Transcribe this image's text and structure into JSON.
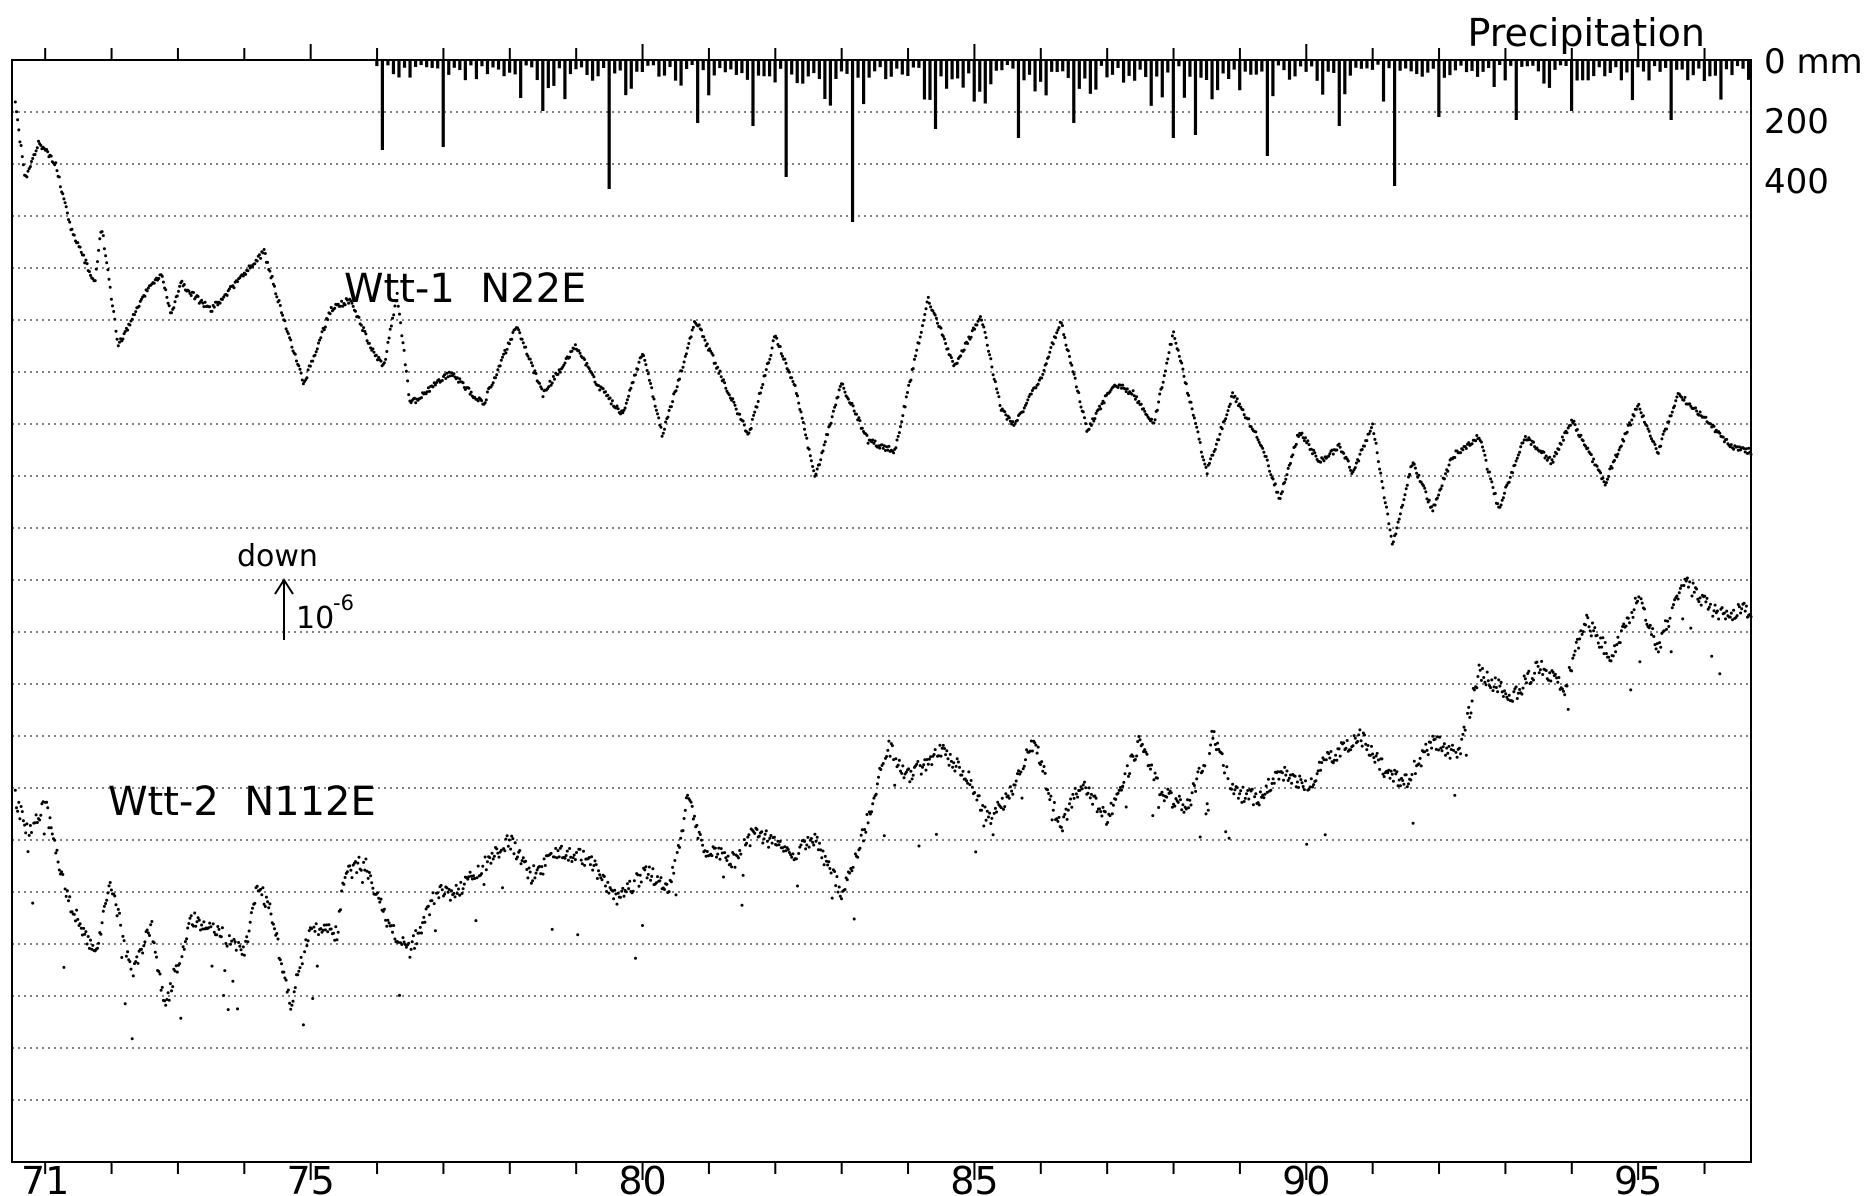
{
  "chart_data": {
    "type": "scatter",
    "title": "",
    "x": {
      "ticks": [
        "71",
        "75",
        "80",
        "85",
        "90",
        "95"
      ],
      "tick_values": [
        71,
        75,
        80,
        85,
        90,
        95
      ],
      "range": [
        70.5,
        96.7
      ]
    },
    "precipitation": {
      "title": "Precipitation",
      "unit": "mm",
      "ticks": [
        "0",
        "200",
        "400"
      ],
      "tick_values": [
        0,
        200,
        400
      ],
      "start": 76.0,
      "end": 96.7,
      "peaks": [
        {
          "x": 76.1,
          "v": 300
        },
        {
          "x": 77.0,
          "v": 290
        },
        {
          "x": 78.5,
          "v": 170
        },
        {
          "x": 79.5,
          "v": 430
        },
        {
          "x": 80.8,
          "v": 210
        },
        {
          "x": 81.7,
          "v": 220
        },
        {
          "x": 82.2,
          "v": 390
        },
        {
          "x": 83.2,
          "v": 540
        },
        {
          "x": 84.4,
          "v": 230
        },
        {
          "x": 85.7,
          "v": 260
        },
        {
          "x": 86.5,
          "v": 210
        },
        {
          "x": 88.0,
          "v": 260
        },
        {
          "x": 88.3,
          "v": 250
        },
        {
          "x": 89.4,
          "v": 320
        },
        {
          "x": 90.5,
          "v": 220
        },
        {
          "x": 91.3,
          "v": 420
        },
        {
          "x": 92.0,
          "v": 190
        },
        {
          "x": 93.2,
          "v": 200
        },
        {
          "x": 94.0,
          "v": 170
        },
        {
          "x": 95.5,
          "v": 200
        }
      ]
    },
    "scale_marker": {
      "label": "down",
      "value": "10",
      "exponent": "-6"
    },
    "series": [
      {
        "name": "Wtt-1  N22E",
        "noise": 3,
        "points": [
          [
            70.55,
            4.6
          ],
          [
            70.7,
            3.9
          ],
          [
            70.9,
            4.25
          ],
          [
            71.15,
            4.05
          ],
          [
            71.4,
            3.4
          ],
          [
            71.75,
            2.9
          ],
          [
            71.85,
            3.45
          ],
          [
            72.1,
            2.3
          ],
          [
            72.5,
            2.8
          ],
          [
            72.75,
            3.0
          ],
          [
            72.9,
            2.6
          ],
          [
            73.05,
            2.9
          ],
          [
            73.3,
            2.75
          ],
          [
            73.5,
            2.65
          ],
          [
            73.8,
            2.85
          ],
          [
            74.3,
            3.2
          ],
          [
            74.6,
            2.55
          ],
          [
            74.9,
            1.95
          ],
          [
            75.3,
            2.65
          ],
          [
            75.6,
            2.75
          ],
          [
            75.9,
            2.3
          ],
          [
            76.1,
            2.1
          ],
          [
            76.3,
            2.8
          ],
          [
            76.5,
            1.75
          ],
          [
            77.1,
            2.05
          ],
          [
            77.6,
            1.75
          ],
          [
            78.1,
            2.5
          ],
          [
            78.5,
            1.85
          ],
          [
            79.0,
            2.3
          ],
          [
            79.3,
            1.95
          ],
          [
            79.7,
            1.65
          ],
          [
            80.0,
            2.25
          ],
          [
            80.3,
            1.45
          ],
          [
            80.8,
            2.55
          ],
          [
            81.6,
            1.45
          ],
          [
            82.0,
            2.4
          ],
          [
            82.3,
            1.9
          ],
          [
            82.6,
            1.05
          ],
          [
            83.0,
            1.95
          ],
          [
            83.4,
            1.4
          ],
          [
            83.8,
            1.3
          ],
          [
            84.3,
            2.75
          ],
          [
            84.5,
            2.45
          ],
          [
            84.7,
            2.1
          ],
          [
            85.1,
            2.6
          ],
          [
            85.4,
            1.7
          ],
          [
            85.6,
            1.55
          ],
          [
            86.0,
            2.0
          ],
          [
            86.3,
            2.55
          ],
          [
            86.7,
            1.5
          ],
          [
            87.1,
            1.95
          ],
          [
            87.4,
            1.85
          ],
          [
            87.7,
            1.55
          ],
          [
            88.0,
            2.45
          ],
          [
            88.5,
            1.1
          ],
          [
            88.9,
            1.85
          ],
          [
            89.3,
            1.4
          ],
          [
            89.6,
            0.85
          ],
          [
            89.9,
            1.5
          ],
          [
            90.2,
            1.2
          ],
          [
            90.5,
            1.35
          ],
          [
            90.7,
            1.1
          ],
          [
            91.0,
            1.55
          ],
          [
            91.3,
            0.4
          ],
          [
            91.6,
            1.2
          ],
          [
            91.9,
            0.75
          ],
          [
            92.2,
            1.25
          ],
          [
            92.6,
            1.45
          ],
          [
            92.9,
            0.75
          ],
          [
            93.3,
            1.45
          ],
          [
            93.7,
            1.2
          ],
          [
            94.0,
            1.6
          ],
          [
            94.5,
            1.0
          ],
          [
            95.0,
            1.75
          ],
          [
            95.3,
            1.3
          ],
          [
            95.6,
            1.85
          ],
          [
            96.1,
            1.55
          ],
          [
            96.4,
            1.35
          ],
          [
            96.7,
            1.3
          ]
        ]
      },
      {
        "name": "Wtt-2  N112E",
        "noise": 8,
        "points": [
          [
            70.55,
            -2.0
          ],
          [
            70.75,
            -2.35
          ],
          [
            71.0,
            -2.05
          ],
          [
            71.3,
            -2.9
          ],
          [
            71.75,
            -3.5
          ],
          [
            72.0,
            -2.8
          ],
          [
            72.3,
            -3.7
          ],
          [
            72.6,
            -3.2
          ],
          [
            72.8,
            -4.0
          ],
          [
            73.2,
            -3.15
          ],
          [
            73.6,
            -3.25
          ],
          [
            74.0,
            -3.5
          ],
          [
            74.2,
            -2.8
          ],
          [
            74.4,
            -3.1
          ],
          [
            74.7,
            -3.95
          ],
          [
            75.0,
            -3.2
          ],
          [
            75.4,
            -3.3
          ],
          [
            75.5,
            -2.75
          ],
          [
            75.8,
            -2.6
          ],
          [
            76.2,
            -3.25
          ],
          [
            76.5,
            -3.45
          ],
          [
            76.9,
            -2.9
          ],
          [
            77.2,
            -2.9
          ],
          [
            77.6,
            -2.65
          ],
          [
            78.0,
            -2.4
          ],
          [
            78.3,
            -2.75
          ],
          [
            78.8,
            -2.5
          ],
          [
            79.2,
            -2.6
          ],
          [
            79.6,
            -2.95
          ],
          [
            80.1,
            -2.7
          ],
          [
            80.4,
            -2.9
          ],
          [
            80.7,
            -1.95
          ],
          [
            80.9,
            -2.5
          ],
          [
            81.4,
            -2.6
          ],
          [
            81.7,
            -2.3
          ],
          [
            82.2,
            -2.55
          ],
          [
            82.6,
            -2.4
          ],
          [
            83.0,
            -2.9
          ],
          [
            83.3,
            -2.4
          ],
          [
            83.7,
            -1.5
          ],
          [
            84.0,
            -1.8
          ],
          [
            84.5,
            -1.55
          ],
          [
            84.9,
            -1.8
          ],
          [
            85.2,
            -2.2
          ],
          [
            85.5,
            -2.0
          ],
          [
            85.9,
            -1.45
          ],
          [
            86.3,
            -2.3
          ],
          [
            86.6,
            -1.85
          ],
          [
            87.0,
            -2.2
          ],
          [
            87.5,
            -1.45
          ],
          [
            87.8,
            -1.95
          ],
          [
            88.2,
            -2.1
          ],
          [
            88.6,
            -1.4
          ],
          [
            88.9,
            -1.95
          ],
          [
            89.3,
            -2.0
          ],
          [
            89.6,
            -1.75
          ],
          [
            90.0,
            -1.9
          ],
          [
            90.3,
            -1.65
          ],
          [
            90.8,
            -1.4
          ],
          [
            91.2,
            -1.75
          ],
          [
            91.5,
            -1.85
          ],
          [
            91.9,
            -1.45
          ],
          [
            92.3,
            -1.6
          ],
          [
            92.6,
            -0.8
          ],
          [
            93.1,
            -1.05
          ],
          [
            93.5,
            -0.75
          ],
          [
            93.9,
            -0.95
          ],
          [
            94.2,
            -0.3
          ],
          [
            94.6,
            -0.65
          ],
          [
            95.0,
            -0.1
          ],
          [
            95.3,
            -0.55
          ],
          [
            95.7,
            0.05
          ],
          [
            96.2,
            -0.25
          ],
          [
            96.7,
            -0.2
          ]
        ]
      }
    ]
  }
}
